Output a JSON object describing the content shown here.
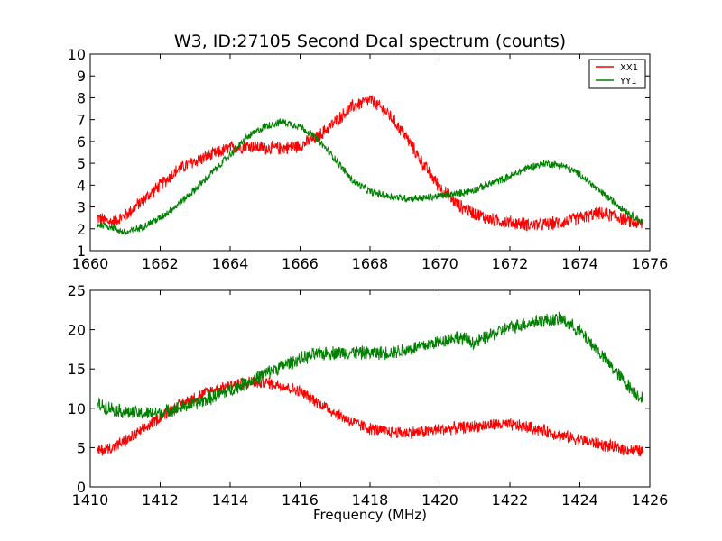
{
  "chart_data": [
    {
      "type": "line",
      "title": "W3, ID:27105 Second Dcal spectrum (counts)",
      "xlabel": "",
      "ylabel": "",
      "xlim": [
        1660,
        1676
      ],
      "ylim": [
        1,
        10
      ],
      "xticks": [
        1660,
        1662,
        1664,
        1666,
        1668,
        1670,
        1672,
        1674,
        1676
      ],
      "yticks": [
        1,
        2,
        3,
        4,
        5,
        6,
        7,
        8,
        9,
        10
      ],
      "legend": "top-right",
      "grid": false,
      "x_range": [
        1660.2,
        1675.8
      ],
      "series": [
        {
          "name": "XX1",
          "color": "#ff0000",
          "noise": 0.35,
          "points": [
            [
              1660.2,
              2.5
            ],
            [
              1660.6,
              2.3
            ],
            [
              1661.0,
              2.6
            ],
            [
              1661.5,
              3.3
            ],
            [
              1662.0,
              4.0
            ],
            [
              1662.5,
              4.7
            ],
            [
              1663.0,
              5.1
            ],
            [
              1663.5,
              5.4
            ],
            [
              1664.0,
              5.7
            ],
            [
              1664.5,
              5.8
            ],
            [
              1665.0,
              5.7
            ],
            [
              1665.5,
              5.7
            ],
            [
              1666.0,
              5.8
            ],
            [
              1666.5,
              6.2
            ],
            [
              1667.0,
              6.9
            ],
            [
              1667.5,
              7.6
            ],
            [
              1668.0,
              7.9
            ],
            [
              1668.5,
              7.3
            ],
            [
              1669.0,
              6.3
            ],
            [
              1669.5,
              5.0
            ],
            [
              1670.0,
              3.9
            ],
            [
              1670.5,
              3.1
            ],
            [
              1671.0,
              2.7
            ],
            [
              1671.5,
              2.4
            ],
            [
              1672.0,
              2.3
            ],
            [
              1672.5,
              2.2
            ],
            [
              1673.0,
              2.2
            ],
            [
              1673.5,
              2.3
            ],
            [
              1674.0,
              2.5
            ],
            [
              1674.5,
              2.7
            ],
            [
              1675.0,
              2.6
            ],
            [
              1675.5,
              2.3
            ],
            [
              1675.8,
              2.2
            ]
          ]
        },
        {
          "name": "YY1",
          "color": "#008000",
          "noise": 0.2,
          "points": [
            [
              1660.2,
              2.2
            ],
            [
              1660.6,
              2.1
            ],
            [
              1661.0,
              1.8
            ],
            [
              1661.5,
              2.1
            ],
            [
              1662.0,
              2.5
            ],
            [
              1662.5,
              3.1
            ],
            [
              1663.0,
              3.8
            ],
            [
              1663.5,
              4.6
            ],
            [
              1664.0,
              5.4
            ],
            [
              1664.5,
              6.2
            ],
            [
              1665.0,
              6.7
            ],
            [
              1665.5,
              6.9
            ],
            [
              1666.0,
              6.7
            ],
            [
              1666.5,
              6.1
            ],
            [
              1667.0,
              5.2
            ],
            [
              1667.5,
              4.2
            ],
            [
              1668.0,
              3.7
            ],
            [
              1668.5,
              3.5
            ],
            [
              1669.0,
              3.4
            ],
            [
              1669.5,
              3.4
            ],
            [
              1670.0,
              3.5
            ],
            [
              1670.5,
              3.6
            ],
            [
              1671.0,
              3.8
            ],
            [
              1671.5,
              4.1
            ],
            [
              1672.0,
              4.4
            ],
            [
              1672.5,
              4.8
            ],
            [
              1673.0,
              5.0
            ],
            [
              1673.5,
              4.9
            ],
            [
              1674.0,
              4.5
            ],
            [
              1674.5,
              3.8
            ],
            [
              1675.0,
              3.2
            ],
            [
              1675.5,
              2.6
            ],
            [
              1675.8,
              2.3
            ]
          ]
        }
      ]
    },
    {
      "type": "line",
      "title": "",
      "xlabel": "Frequency (MHz)",
      "ylabel": "",
      "xlim": [
        1410,
        1426
      ],
      "ylim": [
        0,
        25
      ],
      "xticks": [
        1410,
        1412,
        1414,
        1416,
        1418,
        1420,
        1422,
        1424,
        1426
      ],
      "yticks": [
        0,
        5,
        10,
        15,
        20,
        25
      ],
      "grid": false,
      "x_range": [
        1410.2,
        1425.8
      ],
      "series": [
        {
          "color": "#ff0000",
          "noise": 0.9,
          "points": [
            [
              1410.2,
              4.5
            ],
            [
              1410.6,
              5.0
            ],
            [
              1411.0,
              5.8
            ],
            [
              1411.5,
              7.2
            ],
            [
              1412.0,
              8.9
            ],
            [
              1412.5,
              10.3
            ],
            [
              1413.0,
              11.4
            ],
            [
              1413.5,
              12.3
            ],
            [
              1414.0,
              13.0
            ],
            [
              1414.5,
              13.3
            ],
            [
              1415.0,
              13.3
            ],
            [
              1415.5,
              12.9
            ],
            [
              1416.0,
              12.1
            ],
            [
              1416.5,
              10.8
            ],
            [
              1417.0,
              9.4
            ],
            [
              1417.5,
              8.2
            ],
            [
              1418.0,
              7.4
            ],
            [
              1418.5,
              7.0
            ],
            [
              1419.0,
              6.9
            ],
            [
              1419.5,
              7.0
            ],
            [
              1420.0,
              7.3
            ],
            [
              1420.5,
              7.5
            ],
            [
              1421.0,
              7.7
            ],
            [
              1421.5,
              7.9
            ],
            [
              1422.0,
              7.9
            ],
            [
              1422.5,
              7.6
            ],
            [
              1423.0,
              7.1
            ],
            [
              1423.5,
              6.5
            ],
            [
              1424.0,
              6.0
            ],
            [
              1424.5,
              5.5
            ],
            [
              1425.0,
              5.0
            ],
            [
              1425.5,
              4.7
            ],
            [
              1425.8,
              4.5
            ]
          ]
        },
        {
          "color": "#008000",
          "noise": 1.0,
          "points": [
            [
              1410.2,
              10.5
            ],
            [
              1410.6,
              10.0
            ],
            [
              1411.0,
              9.5
            ],
            [
              1411.5,
              9.3
            ],
            [
              1412.0,
              9.4
            ],
            [
              1412.5,
              10.0
            ],
            [
              1413.0,
              10.6
            ],
            [
              1413.5,
              11.4
            ],
            [
              1414.0,
              12.3
            ],
            [
              1414.5,
              13.3
            ],
            [
              1415.0,
              14.4
            ],
            [
              1415.5,
              15.4
            ],
            [
              1416.0,
              16.3
            ],
            [
              1416.5,
              16.9
            ],
            [
              1417.0,
              17.1
            ],
            [
              1417.5,
              17.1
            ],
            [
              1418.0,
              17.0
            ],
            [
              1418.5,
              17.1
            ],
            [
              1419.0,
              17.4
            ],
            [
              1419.5,
              17.9
            ],
            [
              1420.0,
              18.5
            ],
            [
              1420.5,
              19.1
            ],
            [
              1421.0,
              18.3
            ],
            [
              1421.5,
              19.4
            ],
            [
              1422.0,
              20.3
            ],
            [
              1422.5,
              20.8
            ],
            [
              1423.0,
              21.2
            ],
            [
              1423.5,
              21.3
            ],
            [
              1424.0,
              19.8
            ],
            [
              1424.5,
              17.4
            ],
            [
              1425.0,
              14.8
            ],
            [
              1425.5,
              12.3
            ],
            [
              1425.8,
              11.2
            ]
          ]
        }
      ]
    }
  ]
}
